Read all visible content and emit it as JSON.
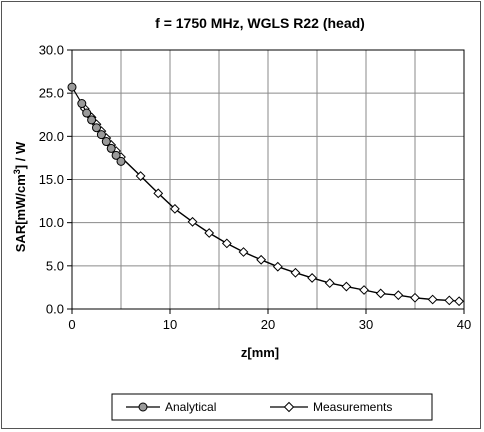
{
  "chart_data": {
    "type": "line",
    "title": "f = 1750 MHz, WGLS R22 (head)",
    "xlabel": "z[mm]",
    "ylabel": {
      "prefix": "SAR[mW/cm",
      "sup": "3",
      "suffix": "] / W"
    },
    "xlim": [
      0,
      40
    ],
    "ylim": [
      0,
      30
    ],
    "xticks": [
      "0",
      "10",
      "20",
      "30",
      "40"
    ],
    "yticks": [
      "0.0",
      "5.0",
      "10.0",
      "15.0",
      "20.0",
      "25.0",
      "30.0"
    ],
    "grid": true,
    "legend_position": "bottom",
    "series": [
      {
        "name": "Analytical",
        "marker": "circle",
        "color": "#9a9a9a",
        "x": [
          0.0,
          1.0,
          1.5,
          2.0,
          2.5,
          3.0,
          3.5,
          4.0,
          4.5,
          5.0
        ],
        "y": [
          25.7,
          23.8,
          22.7,
          21.9,
          21.0,
          20.2,
          19.4,
          18.6,
          17.8,
          17.1
        ]
      },
      {
        "name": "Measurements",
        "marker": "diamond",
        "color": "#ffffff",
        "x": [
          1.3,
          2.0,
          2.5,
          3.0,
          3.5,
          4.0,
          4.5,
          5.0,
          7.0,
          8.8,
          10.5,
          12.3,
          14.0,
          15.8,
          17.5,
          19.3,
          21.0,
          22.8,
          24.5,
          26.3,
          28.0,
          29.8,
          31.5,
          33.3,
          35.0,
          36.8,
          38.5,
          39.5
        ],
        "y": [
          23.2,
          22.2,
          21.4,
          20.6,
          19.8,
          19.0,
          18.3,
          17.6,
          15.4,
          13.4,
          11.6,
          10.1,
          8.8,
          7.6,
          6.6,
          5.7,
          4.9,
          4.2,
          3.6,
          3.0,
          2.6,
          2.2,
          1.8,
          1.6,
          1.3,
          1.1,
          1.0,
          0.9
        ]
      }
    ]
  }
}
